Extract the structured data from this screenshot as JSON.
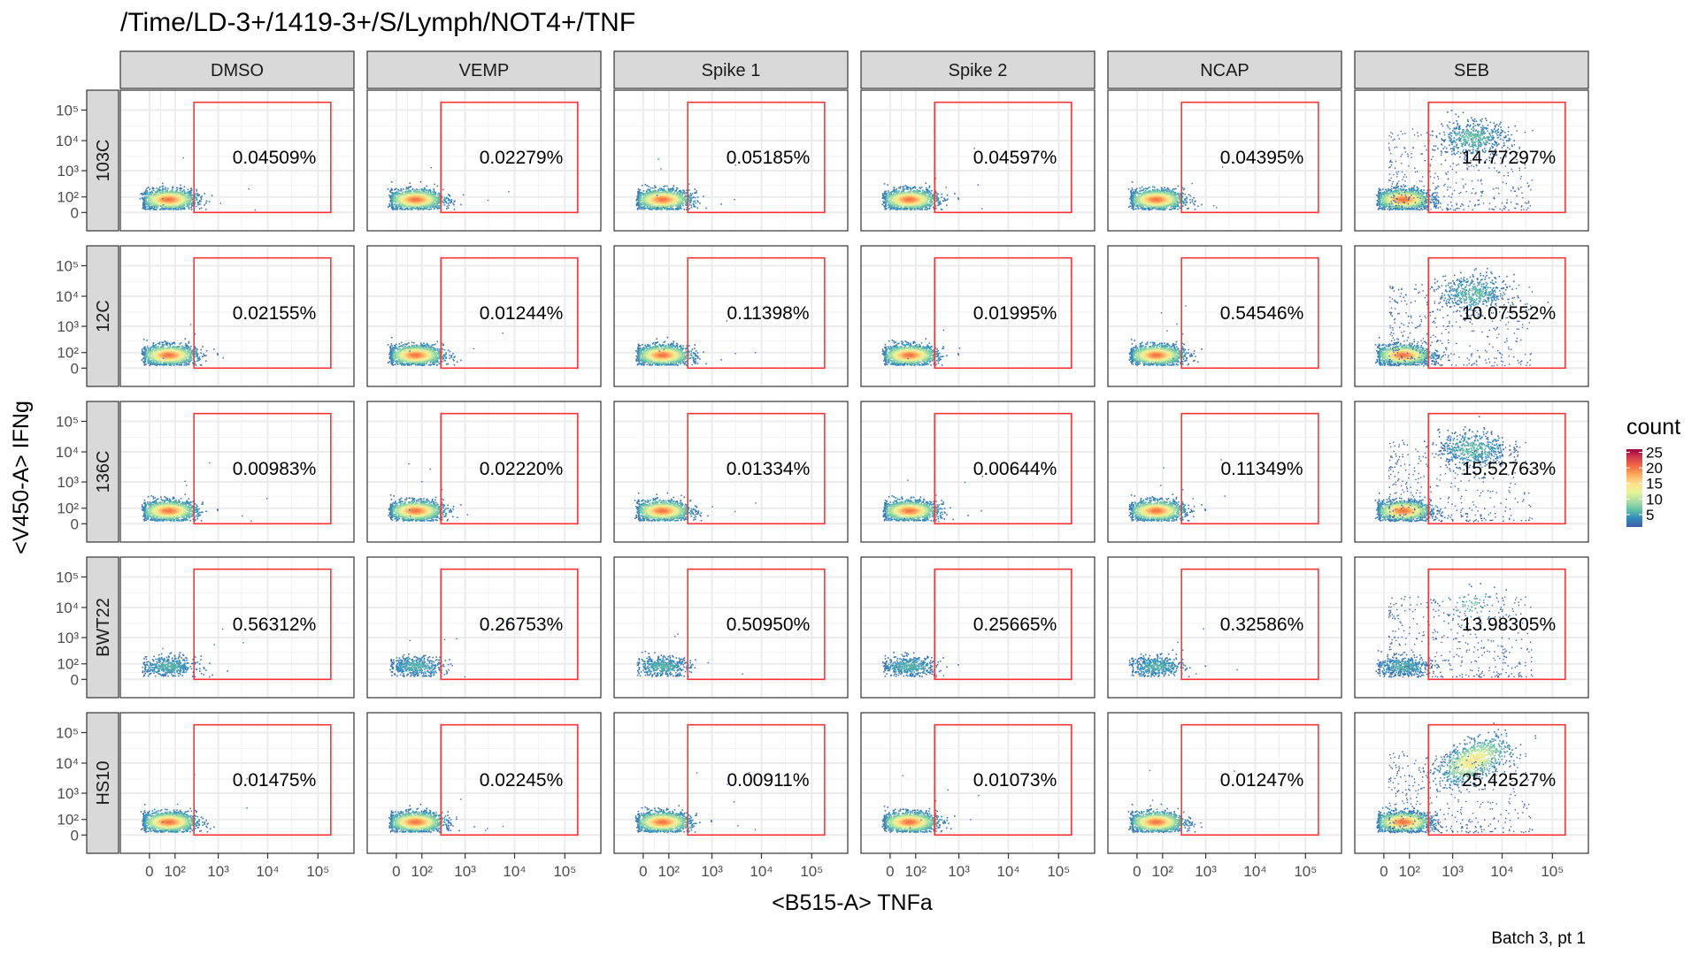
{
  "chart_data": {
    "type": "scatter",
    "title": "/Time/LD-3+/1419-3+/S/Lymph/NOT4+/TNF",
    "xlabel": "<B515-A> TNFa",
    "ylabel": "<V450-A> IFNg",
    "caption": "Batch 3, pt 1",
    "columns": [
      "DMSO",
      "VEMP",
      "Spike 1",
      "Spike 2",
      "NCAP",
      "SEB"
    ],
    "rows": [
      "103C",
      "12C",
      "136C",
      "BWT22",
      "HS10"
    ],
    "x_ticks": [
      {
        "value": 0,
        "label": "0"
      },
      {
        "value": 100,
        "label": "10²"
      },
      {
        "value": 1000,
        "label": "10³"
      },
      {
        "value": 10000,
        "label": "10⁴"
      },
      {
        "value": 100000,
        "label": "10⁵"
      }
    ],
    "y_ticks": [
      {
        "value": 0,
        "label": "0"
      },
      {
        "value": 100,
        "label": "10²"
      },
      {
        "value": 1000,
        "label": "10³"
      },
      {
        "value": 10000,
        "label": "10⁴"
      },
      {
        "value": 100000,
        "label": "10⁵"
      }
    ],
    "gate": {
      "x_min": 300,
      "x_max": 180000,
      "y_min": -80,
      "y_max": 180000,
      "color": "#ff3333"
    },
    "percentages": [
      [
        "0.04509%",
        "0.02279%",
        "0.05185%",
        "0.04597%",
        "0.04395%",
        "14.77297%"
      ],
      [
        "0.02155%",
        "0.01244%",
        "0.11398%",
        "0.01995%",
        "0.54546%",
        "10.07552%"
      ],
      [
        "0.00983%",
        "0.02220%",
        "0.01334%",
        "0.00644%",
        "0.11349%",
        "15.52763%"
      ],
      [
        "0.56312%",
        "0.26753%",
        "0.50950%",
        "0.25665%",
        "0.32586%",
        "13.98305%"
      ],
      [
        "0.01475%",
        "0.02245%",
        "0.00911%",
        "0.01073%",
        "0.01247%",
        "25.42527%"
      ]
    ],
    "legend": {
      "title": "count",
      "ticks": [
        5,
        10,
        15,
        20,
        25
      ],
      "range": [
        1,
        26
      ],
      "palette": [
        "#3f5ea8",
        "#3288bd",
        "#66c2a5",
        "#abdda4",
        "#e6f598",
        "#fee08b",
        "#fdae61",
        "#f46d43",
        "#d53e4f",
        "#9e0142"
      ]
    },
    "grid": true,
    "panel_background": "#ffffff",
    "strip_fill": "#d9d9d9"
  }
}
